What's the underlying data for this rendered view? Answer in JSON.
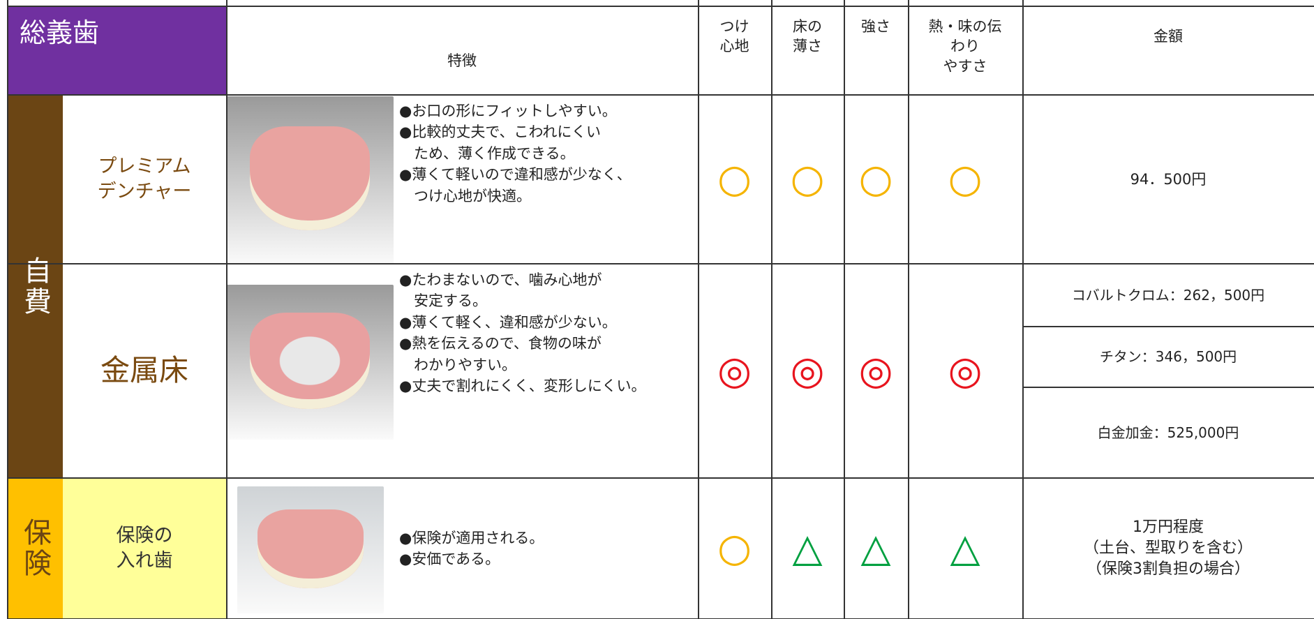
{
  "header": {
    "title": "総義歯",
    "features": "特徴",
    "columns": [
      "つけ\n心地",
      "床の\n薄さ",
      "強さ",
      "熱・味の伝\nわり\nやすさ"
    ],
    "price": "金額"
  },
  "groups": [
    {
      "label": "自費"
    },
    {
      "label": "保険"
    }
  ],
  "rows": [
    {
      "name": "プレミアム\nデンチャー",
      "features": [
        "●お口の形にフィットしやすい。",
        "●比較的丈夫で、こわれにくい",
        "　ため、薄く作成できる。",
        "●薄くて軽いので違和感が少なく、",
        "　つけ心地が快適。"
      ],
      "ratings": [
        {
          "symbol": "○",
          "color": "#f5b400"
        },
        {
          "symbol": "○",
          "color": "#f5b400"
        },
        {
          "symbol": "○",
          "color": "#f5b400"
        },
        {
          "symbol": "○",
          "color": "#f5b400"
        }
      ],
      "prices": [
        "94．500円"
      ]
    },
    {
      "name": "金属床",
      "features": [
        "●たわまないので、噛み心地が",
        "　安定する。",
        "●薄くて軽く、違和感が少ない。",
        "●熱を伝えるので、食物の味が",
        "　わかりやすい。",
        "●丈夫で割れにくく、変形しにくい。"
      ],
      "ratings": [
        {
          "symbol": "◎",
          "color": "#e8141e"
        },
        {
          "symbol": "◎",
          "color": "#e8141e"
        },
        {
          "symbol": "◎",
          "color": "#e8141e"
        },
        {
          "symbol": "◎",
          "color": "#e8141e"
        }
      ],
      "prices": [
        "コバルトクロム：262，500円",
        "チタン：346，500円",
        "白金加金：525,000円"
      ]
    },
    {
      "name": "保険の\n入れ歯",
      "features": [
        "●保険が適用される。",
        "●安価である。"
      ],
      "ratings": [
        {
          "symbol": "○",
          "color": "#f5b400"
        },
        {
          "symbol": "△",
          "color": "#00a040"
        },
        {
          "symbol": "△",
          "color": "#00a040"
        },
        {
          "symbol": "△",
          "color": "#00a040"
        }
      ],
      "prices": [
        "1万円程度\n（土台、型取りを含む）\n（保険3割負担の場合）"
      ]
    }
  ]
}
